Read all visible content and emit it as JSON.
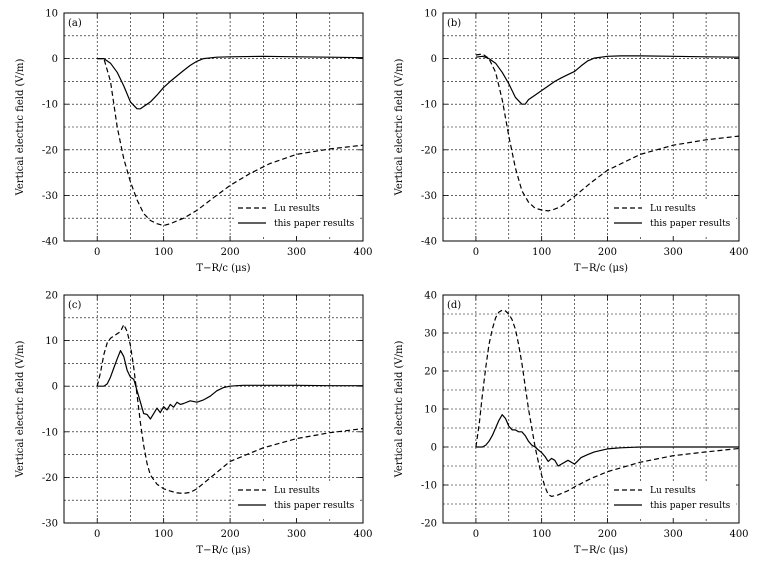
{
  "chart_data": [
    {
      "type": "line",
      "panel_label": "(a)",
      "xlabel": "T−R/c (μs)",
      "ylabel": "Vertical electric field (V/m)",
      "xlim": [
        -50,
        400
      ],
      "ylim": [
        -40,
        10
      ],
      "xticks": [
        0,
        100,
        200,
        300,
        400
      ],
      "yticks": [
        -40,
        -30,
        -20,
        -10,
        0,
        10
      ],
      "grid": true,
      "legend_position": "bottom-right",
      "series": [
        {
          "name": "Lu results",
          "style": "dashed",
          "x": [
            0,
            10,
            20,
            30,
            40,
            50,
            60,
            70,
            80,
            90,
            100,
            110,
            130,
            150,
            175,
            200,
            230,
            260,
            300,
            350,
            400
          ],
          "y": [
            0,
            0,
            -5,
            -15,
            -22,
            -27,
            -31,
            -34,
            -35.5,
            -36.2,
            -36.6,
            -36.2,
            -35,
            -33.3,
            -30.5,
            -27.8,
            -25.2,
            -23,
            -21,
            -19.8,
            -19
          ]
        },
        {
          "name": "this paper results",
          "style": "solid",
          "x": [
            0,
            10,
            20,
            30,
            40,
            50,
            60,
            65,
            70,
            80,
            90,
            100,
            110,
            120,
            130,
            140,
            150,
            160,
            180,
            200,
            250,
            300,
            350,
            400
          ],
          "y": [
            0,
            0,
            -1,
            -3,
            -6,
            -9.5,
            -11,
            -11,
            -10.5,
            -9.5,
            -8,
            -6.3,
            -5,
            -3.8,
            -2.6,
            -1.5,
            -0.6,
            0,
            0.3,
            0.4,
            0.5,
            0.4,
            0.3,
            0.2
          ]
        }
      ]
    },
    {
      "type": "line",
      "panel_label": "(b)",
      "xlabel": "T−R/c (μs)",
      "ylabel": "Vertical electric field (V/m)",
      "xlim": [
        -50,
        400
      ],
      "ylim": [
        -40,
        10
      ],
      "xticks": [
        0,
        100,
        200,
        300,
        400
      ],
      "yticks": [
        -40,
        -30,
        -20,
        -10,
        0,
        10
      ],
      "grid": true,
      "legend_position": "bottom-right",
      "series": [
        {
          "name": "Lu results",
          "style": "dashed",
          "x": [
            0,
            10,
            20,
            30,
            40,
            50,
            60,
            70,
            80,
            90,
            100,
            110,
            120,
            130,
            150,
            175,
            200,
            250,
            300,
            350,
            400
          ],
          "y": [
            0.8,
            1,
            0,
            -3,
            -9,
            -17,
            -24,
            -29,
            -31.5,
            -32.8,
            -33.2,
            -33.4,
            -33,
            -32.4,
            -30.2,
            -27.2,
            -24.5,
            -21,
            -19,
            -17.8,
            -17
          ]
        },
        {
          "name": "this paper results",
          "style": "solid",
          "x": [
            0,
            10,
            20,
            30,
            40,
            50,
            60,
            70,
            75,
            80,
            90,
            100,
            110,
            120,
            130,
            140,
            150,
            160,
            170,
            180,
            200,
            220,
            250,
            300,
            350,
            400
          ],
          "y": [
            0.3,
            0.5,
            0,
            -1,
            -3,
            -5.5,
            -8.5,
            -10,
            -10,
            -9,
            -8,
            -7,
            -6,
            -5,
            -4.2,
            -3.5,
            -2.8,
            -1.6,
            -0.5,
            0.1,
            0.5,
            0.6,
            0.6,
            0.5,
            0.4,
            0.3
          ]
        }
      ]
    },
    {
      "type": "line",
      "panel_label": "(c)",
      "xlabel": "T−R/c (μs)",
      "ylabel": "Vertical electric field (V/m)",
      "xlim": [
        -50,
        400
      ],
      "ylim": [
        -30,
        20
      ],
      "xticks": [
        0,
        100,
        200,
        300,
        400
      ],
      "yticks": [
        -30,
        -20,
        -10,
        0,
        10,
        20
      ],
      "grid": true,
      "legend_position": "bottom-right",
      "series": [
        {
          "name": "Lu results",
          "style": "dashed",
          "x": [
            0,
            5,
            10,
            15,
            20,
            25,
            30,
            35,
            40,
            45,
            50,
            55,
            60,
            65,
            70,
            75,
            80,
            90,
            100,
            110,
            120,
            130,
            140,
            150,
            175,
            200,
            250,
            300,
            350,
            400
          ],
          "y": [
            0,
            3,
            7,
            9.5,
            10.5,
            11,
            11.5,
            12,
            13.5,
            12,
            9,
            4,
            -2,
            -8,
            -13,
            -17,
            -19.5,
            -21.5,
            -22.5,
            -23,
            -23.4,
            -23.5,
            -23.3,
            -22.5,
            -19.5,
            -16.5,
            -13.5,
            -11.5,
            -10.2,
            -9.3
          ]
        },
        {
          "name": "this paper results",
          "style": "solid",
          "x": [
            0,
            10,
            15,
            20,
            25,
            30,
            35,
            40,
            45,
            50,
            55,
            60,
            65,
            70,
            75,
            80,
            85,
            90,
            95,
            100,
            105,
            110,
            115,
            120,
            125,
            130,
            140,
            150,
            160,
            170,
            180,
            190,
            200,
            210,
            220,
            250,
            300,
            350,
            400
          ],
          "y": [
            0,
            0,
            0.5,
            2,
            4,
            6,
            7.8,
            6.5,
            3.5,
            2,
            1.5,
            -1,
            -3.5,
            -6,
            -6.2,
            -7.2,
            -6,
            -4.8,
            -5.8,
            -4.5,
            -5.2,
            -4,
            -4.6,
            -3.5,
            -4,
            -3.8,
            -3.2,
            -3.5,
            -3,
            -2.2,
            -1,
            -0.3,
            0,
            0.1,
            0.2,
            0.2,
            0.2,
            0.1,
            0.1
          ]
        }
      ]
    },
    {
      "type": "line",
      "panel_label": "(d)",
      "xlabel": "T−R/c (μs)",
      "ylabel": "Vertical electric field (V/m)",
      "xlim": [
        -50,
        400
      ],
      "ylim": [
        -20,
        40
      ],
      "xticks": [
        0,
        100,
        200,
        300,
        400
      ],
      "yticks": [
        -20,
        -10,
        0,
        10,
        20,
        30,
        40
      ],
      "grid": true,
      "legend_position": "bottom-right",
      "series": [
        {
          "name": "Lu results",
          "style": "dashed",
          "x": [
            0,
            5,
            10,
            15,
            20,
            25,
            30,
            35,
            40,
            45,
            50,
            55,
            60,
            65,
            70,
            75,
            80,
            85,
            90,
            95,
            100,
            105,
            110,
            115,
            120,
            125,
            130,
            140,
            150,
            175,
            200,
            250,
            300,
            350,
            400
          ],
          "y": [
            0,
            6,
            14,
            21,
            27,
            31,
            34,
            35.5,
            36,
            35.8,
            35,
            33.5,
            31,
            27,
            22,
            16,
            10,
            5,
            0,
            -4,
            -7.5,
            -10.5,
            -12.5,
            -13,
            -12.8,
            -12.6,
            -12.2,
            -11.5,
            -10.5,
            -8.3,
            -6.5,
            -4,
            -2.3,
            -1.3,
            -0.4
          ]
        },
        {
          "name": "this paper results",
          "style": "solid",
          "x": [
            0,
            10,
            15,
            20,
            25,
            30,
            35,
            40,
            45,
            50,
            55,
            60,
            65,
            70,
            75,
            80,
            85,
            90,
            95,
            100,
            105,
            110,
            115,
            120,
            125,
            130,
            140,
            150,
            160,
            170,
            180,
            200,
            220,
            250,
            300,
            350,
            400
          ],
          "y": [
            0,
            0,
            0.5,
            1.5,
            3,
            5,
            7,
            8.5,
            7.5,
            5.5,
            4.5,
            4.5,
            4,
            4,
            3,
            1.5,
            0.5,
            0,
            -0.8,
            -1.5,
            -2.5,
            -3.8,
            -3,
            -3.5,
            -5,
            -4.5,
            -3.5,
            -4.5,
            -2.8,
            -2,
            -1.3,
            -0.5,
            -0.2,
            0,
            0,
            0,
            0
          ]
        }
      ]
    }
  ]
}
